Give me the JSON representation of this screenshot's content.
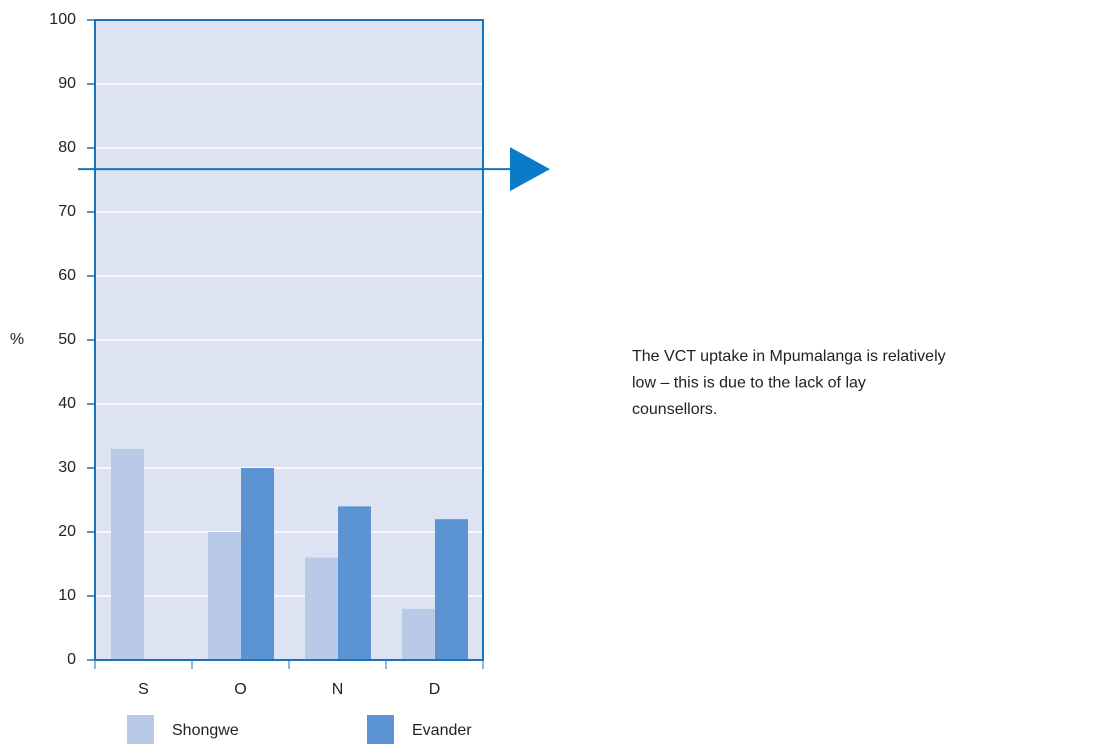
{
  "chart_data": {
    "type": "bar",
    "y_label": "%",
    "categories": [
      "S",
      "O",
      "N",
      "D"
    ],
    "series": [
      {
        "name": "Shongwe",
        "color": "#b9c9e8",
        "values": [
          33,
          20,
          16,
          8
        ]
      },
      {
        "name": "Evander",
        "color": "#5b93d3",
        "values": [
          0,
          30,
          24,
          22
        ]
      }
    ],
    "ylim": [
      0,
      100
    ],
    "yticks": [
      0,
      10,
      20,
      30,
      40,
      50,
      60,
      70,
      80,
      90,
      100
    ],
    "grid": true,
    "reference_line": 76.7,
    "annotation": [
      "The VCT uptake in Mpumalanga is relatively",
      "low – this is due to the lack of lay",
      "counsellors."
    ]
  }
}
